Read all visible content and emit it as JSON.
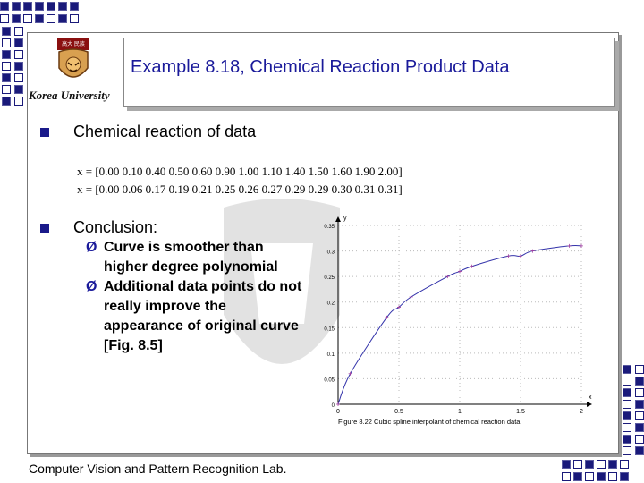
{
  "slide": {
    "title": "Example 8.18, Chemical Reaction Product Data",
    "logo_text": "Korea University",
    "bullet1": "Chemical reaction of data",
    "data_rows": [
      "x = [0.00    0.10    0.40    0.50    0.60    0.90    1.00    1.10    1.40    1.50    1.60    1.90    2.00]",
      "x = [0.00    0.06    0.17    0.19    0.21    0.25    0.26    0.27    0.29    0.29    0.30    0.31    0.31]"
    ],
    "bullet2": "Conclusion:",
    "sub_lines": [
      "Curve is smoother than",
      "higher degree polynomial",
      "Additional data points do not",
      "really improve the",
      "appearance of original curve",
      "[Fig. 8.5]"
    ],
    "footer": "Computer Vision and Pattern Recognition Lab.",
    "colors": {
      "accent": "#1a1a9a",
      "square": "#1a1a7a",
      "curve": "#3333aa"
    }
  },
  "chart_data": {
    "type": "line",
    "caption": "Figure 8.22 Cubic spline  interpolant of chemical reaction data",
    "xlabel": "x",
    "ylabel": "y",
    "xlim": [
      0,
      2
    ],
    "ylim": [
      0,
      0.35
    ],
    "x_ticks": [
      "0",
      "0.5",
      "1",
      "1.5",
      "2"
    ],
    "y_ticks": [
      "0",
      "0.05",
      "0.1",
      "0.15",
      "0.2",
      "0.25",
      "0.3",
      "0.35"
    ],
    "grid": true,
    "series": [
      {
        "x": [
          0.0,
          0.1,
          0.4,
          0.5,
          0.6,
          0.9,
          1.0,
          1.1,
          1.4,
          1.5,
          1.6,
          1.9,
          2.0
        ],
        "values": [
          0.0,
          0.06,
          0.17,
          0.19,
          0.21,
          0.25,
          0.26,
          0.27,
          0.29,
          0.29,
          0.3,
          0.31,
          0.31
        ]
      }
    ]
  }
}
